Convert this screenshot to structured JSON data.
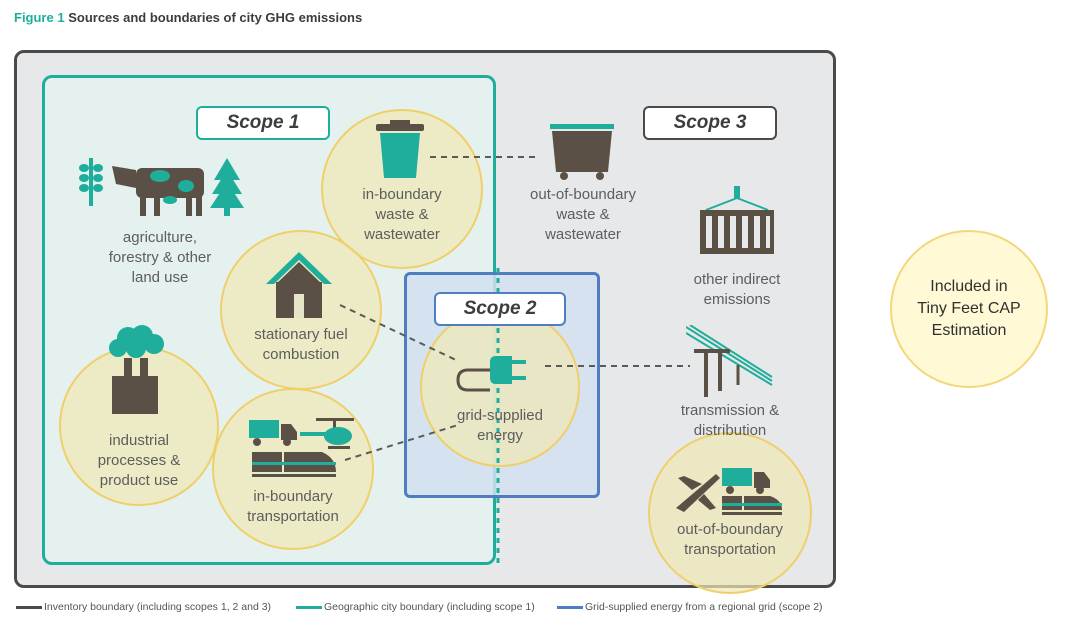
{
  "figure": {
    "number_label": "Figure 1",
    "title": "Sources and boundaries of city GHG emissions"
  },
  "scopes": {
    "scope1": "Scope 1",
    "scope2": "Scope 2",
    "scope3": "Scope 3"
  },
  "sources": {
    "agriculture": [
      "agriculture,",
      "forestry & other",
      "land use"
    ],
    "in_boundary_waste": [
      "in-boundary",
      "waste &",
      "wastewater"
    ],
    "stationary_fuel": [
      "stationary fuel",
      "combustion"
    ],
    "industrial": [
      "industrial",
      "processes &",
      "product use"
    ],
    "in_boundary_transport": [
      "in-boundary",
      "transportation"
    ],
    "grid_energy": [
      "grid-supplied",
      "energy"
    ],
    "out_boundary_waste": [
      "out-of-boundary",
      "waste &",
      "wastewater"
    ],
    "other_indirect": [
      "other indirect",
      "emissions"
    ],
    "transmission": [
      "transmission &",
      "distribution"
    ],
    "out_boundary_transport": [
      "out-of-boundary",
      "transportation"
    ]
  },
  "legend": {
    "inventory": "Inventory boundary (including scopes 1, 2 and 3)",
    "geographic": "Geographic city boundary (including scope 1)",
    "grid": "Grid-supplied energy from a regional grid (scope 2)"
  },
  "included_note": [
    "Included in",
    "Tiny Feet CAP",
    "Estimation"
  ],
  "colors": {
    "teal": "#1fae9b",
    "blue": "#4f7dc0",
    "dark": "#4a4a4a",
    "icon": "#5b5046",
    "highlight": "#f0cf6a"
  }
}
